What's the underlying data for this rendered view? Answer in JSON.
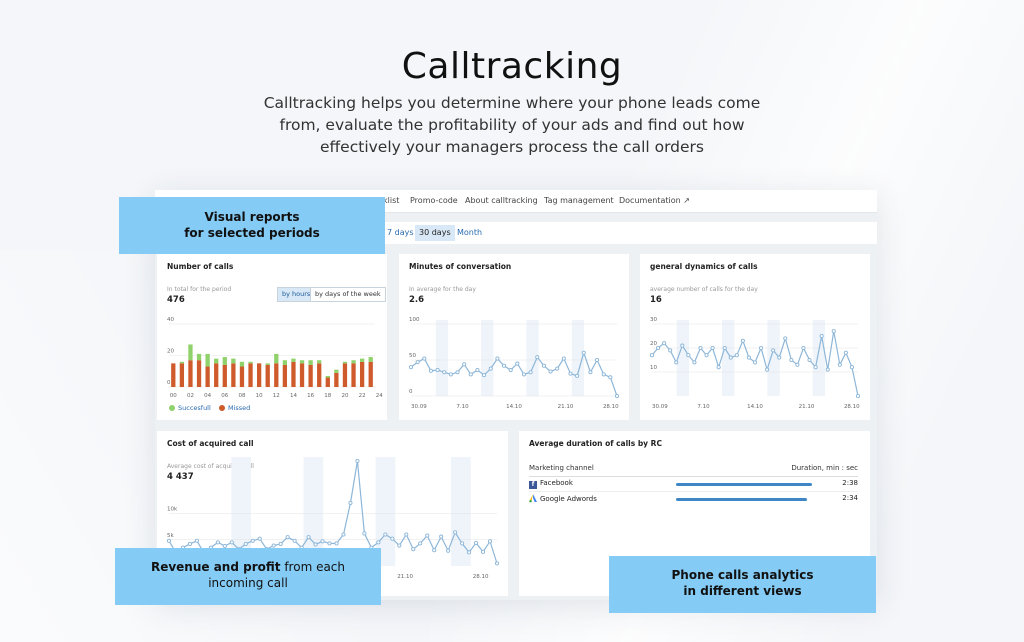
{
  "hero": {
    "title": "Calltracking",
    "subtitle_lines": [
      "Calltracking helps you determine where your phone leads come",
      "from, evaluate the profitability of your ads and find out how",
      "effectively your managers process the call orders"
    ]
  },
  "nav": {
    "items": [
      "klist",
      "Promo-code",
      "About calltracking",
      "Tag management",
      "Documentation"
    ]
  },
  "period_tabs": [
    "7 days",
    "30 days",
    "Month"
  ],
  "period_active": "30 days",
  "cards": {
    "number_of_calls": {
      "title": "Number of calls",
      "sub_label": "In total for the period",
      "stat": "476",
      "toggle": [
        "by hours",
        "by days of the week"
      ],
      "toggle_active": "by hours",
      "legend": [
        "Succesfull",
        "Missed"
      ]
    },
    "minutes": {
      "title": "Minutes of conversation",
      "sub_label": "In average for the day",
      "stat": "2.6"
    },
    "dynamics": {
      "title": "general dynamics of calls",
      "sub_label": "average number of calls for the day",
      "stat": "16"
    },
    "cost": {
      "title": "Cost of acquired call",
      "sub_label": "Average cost of acquired call",
      "stat": "4 437"
    },
    "duration": {
      "title": "Average duration of calls by RC",
      "col1": "Marketing channel",
      "col2": "Duration, min : sec",
      "rows": [
        {
          "channel": "Facebook",
          "value": "2:38"
        },
        {
          "channel": "Google Adwords",
          "value": "2:34"
        }
      ]
    }
  },
  "callouts": {
    "visual": {
      "line1": "Visual reports",
      "line2": "for selected periods"
    },
    "revenue": {
      "bold": "Revenue and profit",
      "rest": " from each",
      "line2": "incoming call"
    },
    "phone": {
      "line1": "Phone calls analytics",
      "line2": "in different views"
    }
  },
  "colors": {
    "accent": "#84cbf5",
    "success": "#8fd16b",
    "missed": "#cf5a2b",
    "line": "#8db6d8"
  },
  "chart_data": [
    {
      "type": "bar",
      "title": "Number of calls",
      "categories": [
        "00",
        "01",
        "02",
        "03",
        "04",
        "05",
        "06",
        "07",
        "08",
        "09",
        "10",
        "11",
        "12",
        "13",
        "14",
        "15",
        "16",
        "17",
        "18",
        "19",
        "20",
        "21",
        "22",
        "23"
      ],
      "x_tick_labels": [
        "00",
        "02",
        "04",
        "06",
        "08",
        "10",
        "12",
        "14",
        "16",
        "18",
        "20",
        "22",
        "24"
      ],
      "y_ticks": [
        "0",
        "20",
        "40"
      ],
      "ylim": [
        0,
        40
      ],
      "series": [
        {
          "name": "Missed",
          "values": [
            15,
            15,
            17,
            17,
            13,
            15,
            14,
            15,
            13,
            15,
            15,
            14,
            15,
            14,
            16,
            15,
            14,
            15,
            6,
            9,
            15,
            15,
            16,
            16
          ]
        },
        {
          "name": "Succesfull",
          "values": [
            0,
            1,
            10,
            4,
            8,
            3,
            5,
            3,
            3,
            1,
            0,
            1,
            6,
            3,
            2,
            2,
            3,
            2,
            1,
            2,
            1,
            2,
            2,
            3
          ]
        }
      ]
    },
    {
      "type": "line",
      "title": "Minutes of conversation",
      "x_tick_labels": [
        "30.09",
        "7.10",
        "14.10",
        "21.10",
        "28.10"
      ],
      "y_ticks": [
        "0",
        "50",
        "100"
      ],
      "ylim": [
        0,
        100
      ],
      "values": [
        40,
        47,
        52,
        35,
        36,
        33,
        30,
        33,
        44,
        30,
        36,
        29,
        38,
        52,
        42,
        36,
        45,
        30,
        33,
        54,
        42,
        34,
        38,
        52,
        31,
        28,
        60,
        33,
        50,
        30,
        26,
        0
      ]
    },
    {
      "type": "line",
      "title": "general dynamics of calls",
      "x_tick_labels": [
        "30.09",
        "7.10",
        "14.10",
        "21.10",
        "28.10"
      ],
      "y_ticks": [
        "10",
        "20",
        "30"
      ],
      "ylim": [
        0,
        30
      ],
      "values": [
        17,
        20,
        22,
        19,
        14,
        21,
        17,
        14,
        20,
        17,
        20,
        12,
        20,
        16,
        17,
        23,
        16,
        14,
        20,
        11,
        19,
        16,
        24,
        15,
        13,
        20,
        15,
        12,
        25,
        11,
        27,
        13,
        18,
        12,
        0
      ]
    },
    {
      "type": "line",
      "title": "Cost of acquired call",
      "x_tick_labels": [
        "21.10",
        "28.10"
      ],
      "y_ticks": [
        "5k",
        "10k"
      ],
      "values": [
        4.8,
        2.5,
        3.5,
        4.2,
        4.8,
        2.5,
        3.5,
        4.5,
        3.8,
        4.5,
        3.2,
        4.2,
        4.8,
        5.2,
        3.2,
        3.9,
        4.2,
        5.5,
        4.8,
        3.5,
        5.5,
        4.1,
        4.7,
        4.3,
        4.3,
        6.0,
        12.0,
        20.0,
        6.2,
        3.5,
        4.5,
        6.0,
        5.2,
        3.9,
        6.0,
        3.2,
        4.3,
        5.8,
        3.0,
        5.6,
        2.9,
        6.4,
        4.3,
        2.6,
        4.4,
        2.7,
        4.7,
        0.5
      ]
    }
  ]
}
